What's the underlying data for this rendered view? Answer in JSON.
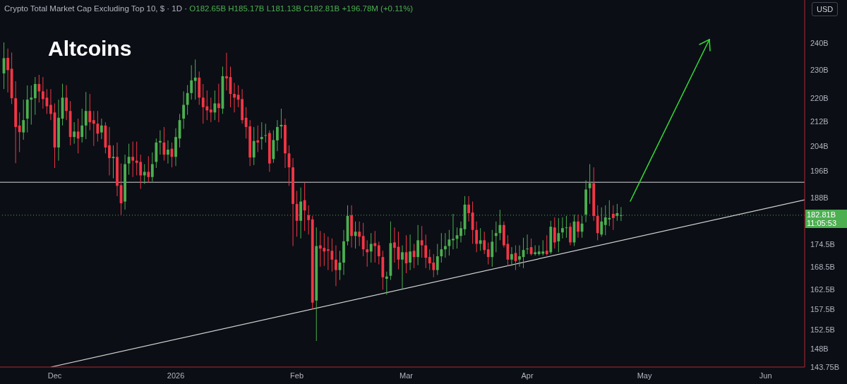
{
  "chart_data": {
    "type": "candlestick",
    "title": "Crypto Total Market Cap Excluding Top 10, $ · 1D ·",
    "subtitle": "O182.65B H185.17B L181.13B C182.81B +196.78M (+0.11%)",
    "annotations": [
      "Altcoins",
      "USD",
      "11:05:53"
    ],
    "log": "y",
    "colors": [
      "#4caf50",
      "#f23645",
      "#f23645",
      "#f23645",
      "#f23645",
      "#4caf50",
      "#4caf50",
      "#4caf50",
      "#4caf50",
      "#f23645",
      "#f23645",
      "#f23645",
      "#f23645",
      "#f23645",
      "#4caf50",
      "#4caf50",
      "#f23645",
      "#f23645",
      "#4caf50",
      "#f23645",
      "#4caf50",
      "#4caf50",
      "#f23645",
      "#f23645",
      "#f23645",
      "#4caf50",
      "#f23645",
      "#f23645",
      "#4caf50",
      "#f23645",
      "#f23645",
      "#4caf50",
      "#4caf50",
      "#f23645",
      "#f23645",
      "#f23645",
      "#4caf50",
      "#f23645",
      "#4caf50",
      "#4caf50",
      "#4caf50",
      "#f23645",
      "#4caf50",
      "#f23645",
      "#4caf50",
      "#4caf50",
      "#4caf50",
      "#4caf50",
      "#4caf50",
      "#4caf50",
      "#f23645",
      "#f23645",
      "#f23645",
      "#f23645",
      "#4caf50",
      "#f23645",
      "#4caf50",
      "#f23645",
      "#f23645",
      "#f23645",
      "#f23645",
      "#f23645",
      "#f23645",
      "#f23645",
      "#4caf50",
      "#f23645",
      "#4caf50",
      "#4caf50",
      "#f23645",
      "#4caf50",
      "#4caf50",
      "#4caf50",
      "#f23645",
      "#f23645",
      "#f23645",
      "#f23645",
      "#4caf50",
      "#f23645",
      "#f23645",
      "#f23645",
      "#4caf50",
      "#f23645",
      "#f23645",
      "#f23645",
      "#f23645",
      "#f23645",
      "#4caf50",
      "#4caf50",
      "#4caf50",
      "#f23645",
      "#4caf50",
      "#f23645",
      "#f23645",
      "#f23645",
      "#4caf50",
      "#f23645",
      "#f23645",
      "#f23645",
      "#4caf50",
      "#4caf50",
      "#f23645",
      "#f23645",
      "#4caf50",
      "#f23645",
      "#4caf50",
      "#f23645",
      "#4caf50",
      "#f23645",
      "#f23645",
      "#f23645",
      "#f23645",
      "#4caf50",
      "#4caf50",
      "#4caf50",
      "#4caf50",
      "#4caf50",
      "#4caf50",
      "#4caf50",
      "#4caf50",
      "#f23645",
      "#f23645",
      "#f23645",
      "#4caf50",
      "#f23645",
      "#f23645",
      "#4caf50",
      "#4caf50",
      "#4caf50",
      "#f23645",
      "#f23645",
      "#4caf50",
      "#f23645",
      "#4caf50",
      "#4caf50",
      "#4caf50",
      "#f23645",
      "#4caf50",
      "#4caf50",
      "#4caf50",
      "#f23645",
      "#4caf50",
      "#f23645",
      "#4caf50",
      "#4caf50",
      "#4caf50",
      "#f23645",
      "#4caf50",
      "#f23645",
      "#4caf50",
      "#4caf50",
      "#4caf50",
      "#f23645",
      "#f23645",
      "#4caf50",
      "#4caf50",
      "#4caf50",
      "#f23645",
      "#4caf50",
      "#4caf50"
    ],
    "xlim": [
      "2025-11-17",
      "2026-06-11"
    ],
    "xticks": [
      {
        "value": "2025-12-01",
        "label": "Dec"
      },
      {
        "value": "2026-01-01",
        "label": "2026"
      },
      {
        "value": "2026-02-01",
        "label": "Feb"
      },
      {
        "value": "2026-03-01",
        "label": "Mar"
      },
      {
        "value": "2026-04-01",
        "label": "Apr"
      },
      {
        "value": "2026-05-01",
        "label": "May"
      },
      {
        "value": "2026-06-01",
        "label": "Jun"
      }
    ],
    "ylim": [
      143.75,
      257
    ],
    "yticks": [
      {
        "value": 143.75,
        "label": "143.75B"
      },
      {
        "value": 148,
        "label": "148B"
      },
      {
        "value": 152.5,
        "label": "152.5B"
      },
      {
        "value": 157.5,
        "label": "157.5B"
      },
      {
        "value": 162.5,
        "label": "162.5B"
      },
      {
        "value": 168.5,
        "label": "168.5B"
      },
      {
        "value": 174.5,
        "label": "174.5B"
      },
      {
        "value": 188,
        "label": "188B"
      },
      {
        "value": 196,
        "label": "196B"
      },
      {
        "value": 204,
        "label": "204B"
      },
      {
        "value": 212,
        "label": "212B"
      },
      {
        "value": 220,
        "label": "220B"
      },
      {
        "value": 230,
        "label": "230B"
      },
      {
        "value": 240,
        "label": "240B"
      }
    ],
    "ref_lines": [
      {
        "axis": "y",
        "value": 192.6,
        "color": "#d8d8d8",
        "line_style": "solid"
      },
      {
        "axis": "y",
        "value": 182.81,
        "label": "182.81B",
        "color": "#4caf50",
        "line_style": "dotted"
      }
    ],
    "x": [
      "2025-11-18",
      "2025-11-19",
      "2025-11-20",
      "2025-11-21",
      "2025-11-22",
      "2025-11-23",
      "2025-11-24",
      "2025-11-25",
      "2025-11-26",
      "2025-11-27",
      "2025-11-28",
      "2025-11-29",
      "2025-11-30",
      "2025-12-01",
      "2025-12-02",
      "2025-12-03",
      "2025-12-04",
      "2025-12-05",
      "2025-12-06",
      "2025-12-07",
      "2025-12-08",
      "2025-12-09",
      "2025-12-10",
      "2025-12-11",
      "2025-12-12",
      "2025-12-13",
      "2025-12-14",
      "2025-12-15",
      "2025-12-16",
      "2025-12-17",
      "2025-12-18",
      "2025-12-19",
      "2025-12-20",
      "2025-12-21",
      "2025-12-22",
      "2025-12-23",
      "2025-12-24",
      "2025-12-25",
      "2025-12-26",
      "2025-12-27",
      "2025-12-28",
      "2025-12-29",
      "2025-12-30",
      "2025-12-31",
      "2026-01-01",
      "2026-01-02",
      "2026-01-03",
      "2026-01-04",
      "2026-01-05",
      "2026-01-06",
      "2026-01-07",
      "2026-01-08",
      "2026-01-09",
      "2026-01-10",
      "2026-01-11",
      "2026-01-12",
      "2026-01-13",
      "2026-01-14",
      "2026-01-15",
      "2026-01-16",
      "2026-01-17",
      "2026-01-18",
      "2026-01-19",
      "2026-01-20",
      "2026-01-21",
      "2026-01-22",
      "2026-01-23",
      "2026-01-24",
      "2026-01-25",
      "2026-01-26",
      "2026-01-27",
      "2026-01-28",
      "2026-01-29",
      "2026-01-30",
      "2026-01-31",
      "2026-02-01",
      "2026-02-02",
      "2026-02-03",
      "2026-02-04",
      "2026-02-05",
      "2026-02-06",
      "2026-02-07",
      "2026-02-08",
      "2026-02-09",
      "2026-02-10",
      "2026-02-11",
      "2026-02-12",
      "2026-02-13",
      "2026-02-14",
      "2026-02-15",
      "2026-02-16",
      "2026-02-17",
      "2026-02-18",
      "2026-02-19",
      "2026-02-20",
      "2026-02-21",
      "2026-02-22",
      "2026-02-23",
      "2026-02-24",
      "2026-02-25",
      "2026-02-26",
      "2026-02-27",
      "2026-02-28",
      "2026-03-01",
      "2026-03-02",
      "2026-03-03",
      "2026-03-04",
      "2026-03-05",
      "2026-03-06",
      "2026-03-07",
      "2026-03-08",
      "2026-03-09",
      "2026-03-10",
      "2026-03-11",
      "2026-03-12",
      "2026-03-13",
      "2026-03-14",
      "2026-03-15",
      "2026-03-16",
      "2026-03-17",
      "2026-03-18",
      "2026-03-19",
      "2026-03-20",
      "2026-03-21",
      "2026-03-22",
      "2026-03-23",
      "2026-03-24",
      "2026-03-25",
      "2026-03-26",
      "2026-03-27",
      "2026-03-28",
      "2026-03-29",
      "2026-03-30",
      "2026-03-31",
      "2026-04-01",
      "2026-04-02",
      "2026-04-03",
      "2026-04-04",
      "2026-04-05",
      "2026-04-06",
      "2026-04-07",
      "2026-04-08",
      "2026-04-09",
      "2026-04-10",
      "2026-04-11",
      "2026-04-12",
      "2026-04-13",
      "2026-04-14",
      "2026-04-15",
      "2026-04-16",
      "2026-04-17",
      "2026-04-18",
      "2026-04-19",
      "2026-04-20",
      "2026-04-21",
      "2026-04-22",
      "2026-04-23",
      "2026-04-24",
      "2026-04-25"
    ],
    "ohlc": [
      [
        228.8,
        240.3,
        223.2,
        234.4
      ],
      [
        234.5,
        238,
        222,
        230
      ],
      [
        230.5,
        236.5,
        218,
        220
      ],
      [
        220,
        226,
        198.5,
        210.2
      ],
      [
        210.7,
        215.1,
        202,
        208.5
      ],
      [
        208.4,
        219.5,
        206,
        212.5
      ],
      [
        213,
        224.5,
        208.4,
        219.5
      ],
      [
        219.5,
        224.5,
        211,
        220.2
      ],
      [
        220,
        227.5,
        214.3,
        225
      ],
      [
        225,
        228.3,
        218.5,
        222.4
      ],
      [
        222.4,
        227.5,
        216.4,
        219.7
      ],
      [
        220.2,
        223.2,
        214.6,
        217.2
      ],
      [
        217.7,
        223.2,
        212.5,
        214.6
      ],
      [
        215.1,
        218.2,
        197,
        203.5
      ],
      [
        203.5,
        219.5,
        199.3,
        213.3
      ],
      [
        213,
        225.1,
        210.7,
        220.2
      ],
      [
        220.2,
        224.6,
        212.5,
        215.6
      ],
      [
        215.6,
        219,
        204.2,
        206.9
      ],
      [
        206.9,
        211.8,
        204.7,
        208.7
      ],
      [
        208.7,
        213,
        201.6,
        206.4
      ],
      [
        206.9,
        216.4,
        205.1,
        210.7
      ],
      [
        210.7,
        222.2,
        206.2,
        215.6
      ],
      [
        215.6,
        221.5,
        209.1,
        211.8
      ],
      [
        212.5,
        215.6,
        204,
        211.3
      ],
      [
        211.3,
        215.6,
        205.4,
        208
      ],
      [
        208.4,
        213,
        206.2,
        210.7
      ],
      [
        210.7,
        211.8,
        201.6,
        203.5
      ],
      [
        204.2,
        210.2,
        194.7,
        200.1
      ],
      [
        200.1,
        204.2,
        193.8,
        200.5
      ],
      [
        200.5,
        205.1,
        188.4,
        191.5
      ],
      [
        191.7,
        198.4,
        183,
        186.3
      ],
      [
        186.8,
        201.2,
        184.4,
        198.2
      ],
      [
        198.4,
        204.7,
        194.9,
        200.5
      ],
      [
        200.5,
        205.4,
        194.2,
        199.3
      ],
      [
        199.3,
        205.4,
        194.7,
        198.6
      ],
      [
        198.9,
        201.2,
        190.6,
        194.7
      ],
      [
        194.7,
        198.2,
        192.1,
        195.8
      ],
      [
        195.8,
        200.7,
        192.5,
        194.2
      ],
      [
        194.2,
        201.9,
        192.8,
        198.2
      ],
      [
        198.9,
        206.4,
        197,
        205.1
      ],
      [
        205.1,
        209.1,
        201.2,
        205.6
      ],
      [
        205.1,
        210.2,
        199.3,
        201.2
      ],
      [
        201.2,
        205.8,
        198.4,
        202.8
      ],
      [
        203.1,
        205.1,
        197.2,
        200.5
      ],
      [
        200.5,
        209.8,
        197.6,
        206.9
      ],
      [
        206.4,
        214.6,
        203.5,
        212.5
      ],
      [
        213,
        222.4,
        209.6,
        217.7
      ],
      [
        217.7,
        224.6,
        214.3,
        221.8
      ],
      [
        221.8,
        231.8,
        219.5,
        226.3
      ],
      [
        226.1,
        233.9,
        219.5,
        227.3
      ],
      [
        227.3,
        229.5,
        217.7,
        220.2
      ],
      [
        220.2,
        225,
        211.3,
        216.9
      ],
      [
        217.2,
        222.7,
        212.5,
        215.8
      ],
      [
        216.1,
        220.2,
        211.8,
        215.1
      ],
      [
        215.1,
        222.7,
        212.5,
        218.2
      ],
      [
        218.2,
        225.1,
        211.8,
        216.6
      ],
      [
        216.4,
        231.3,
        214.6,
        227.8
      ],
      [
        227.8,
        236.4,
        222.7,
        227
      ],
      [
        227.5,
        231.3,
        216.9,
        221.5
      ],
      [
        221.5,
        225.4,
        215.1,
        220.2
      ],
      [
        221.2,
        224.6,
        216.9,
        219.5
      ],
      [
        219.7,
        223.2,
        211.3,
        212.5
      ],
      [
        213.3,
        216.9,
        206.4,
        210.2
      ],
      [
        210.4,
        212.5,
        197.6,
        200.3
      ],
      [
        200.3,
        210.2,
        197.9,
        205.6
      ],
      [
        205.8,
        210.7,
        202,
        205.1
      ],
      [
        206.2,
        211.8,
        202.8,
        206.9
      ],
      [
        207.3,
        211.3,
        205.1,
        207.5
      ],
      [
        208.2,
        209.1,
        195.8,
        198.4
      ],
      [
        199.8,
        209.1,
        198.6,
        205.9
      ],
      [
        205.8,
        212.5,
        202.3,
        210.2
      ],
      [
        210.4,
        216.4,
        206.4,
        210.9
      ],
      [
        210.9,
        213,
        197,
        201.6
      ],
      [
        201.6,
        204.2,
        191.5,
        197.2
      ],
      [
        197.2,
        200.1,
        174.1,
        186.1
      ],
      [
        186.1,
        190,
        176.7,
        181.2
      ],
      [
        181.2,
        191,
        176.2,
        186.8
      ],
      [
        187.2,
        192.5,
        178.3,
        184.2
      ],
      [
        182.8,
        185.7,
        177.3,
        181.4
      ],
      [
        181.6,
        182.6,
        157.5,
        159.2
      ],
      [
        159.7,
        179.3,
        149.8,
        174.1
      ],
      [
        174.3,
        178.3,
        168.5,
        173.4
      ],
      [
        173.6,
        177.7,
        168.7,
        172.6
      ],
      [
        173.2,
        176.7,
        167.6,
        172.8
      ],
      [
        172.8,
        176.2,
        167.2,
        170.4
      ],
      [
        170.4,
        174.3,
        163.4,
        167.6
      ],
      [
        167.6,
        172.8,
        165,
        169.6
      ],
      [
        169.6,
        178.6,
        166.3,
        175.4
      ],
      [
        175.4,
        185.7,
        174.3,
        182.6
      ],
      [
        182.8,
        185.7,
        173.7,
        176.9
      ],
      [
        176.9,
        181,
        173.4,
        178.1
      ],
      [
        178.1,
        181,
        174.1,
        176.7
      ],
      [
        176.9,
        180.6,
        171.3,
        173.2
      ],
      [
        173.2,
        175.7,
        168.5,
        172.4
      ],
      [
        172.6,
        177.7,
        169.6,
        174.7
      ],
      [
        174.9,
        178.3,
        169.6,
        174.1
      ],
      [
        174.3,
        175.3,
        169.1,
        171.3
      ],
      [
        171.1,
        172.8,
        162.5,
        165.7
      ],
      [
        165.3,
        167.2,
        161.2,
        165.9
      ],
      [
        166.1,
        181,
        165,
        174.9
      ],
      [
        175.1,
        179.3,
        169.6,
        173.6
      ],
      [
        173.9,
        178.1,
        167.8,
        170.4
      ],
      [
        170.4,
        174.3,
        162.5,
        172.4
      ],
      [
        172.4,
        177.1,
        166.8,
        169.4
      ],
      [
        169.6,
        177.3,
        167.6,
        172.6
      ],
      [
        172.8,
        174.7,
        168.1,
        171.1
      ],
      [
        171.1,
        180,
        168.9,
        175.7
      ],
      [
        175.7,
        179.7,
        170.9,
        174.3
      ],
      [
        174.3,
        177.3,
        168.1,
        170.9
      ],
      [
        171.1,
        173.2,
        167.6,
        169.4
      ],
      [
        169.6,
        171.9,
        165.7,
        167.6
      ],
      [
        167.6,
        174.7,
        166.3,
        171.3
      ],
      [
        171.3,
        177.7,
        169.6,
        173.2
      ],
      [
        173.2,
        177.7,
        170.9,
        174.1
      ],
      [
        174.1,
        178.6,
        171.5,
        175.9
      ],
      [
        175.7,
        183.2,
        173.2,
        176.1
      ],
      [
        176.1,
        179.3,
        173.4,
        177.1
      ],
      [
        176.9,
        181,
        175.1,
        179.1
      ],
      [
        178.8,
        188.4,
        177.1,
        185.9
      ],
      [
        185.9,
        188.4,
        181,
        183.4
      ],
      [
        183.6,
        186.8,
        174.7,
        178.6
      ],
      [
        178.6,
        181,
        172.4,
        174.7
      ],
      [
        174.7,
        179.1,
        172.8,
        175.7
      ],
      [
        175.7,
        178.1,
        171.9,
        173
      ],
      [
        173.2,
        175.1,
        169.1,
        171.1
      ],
      [
        171.1,
        178.6,
        168.5,
        175.3
      ],
      [
        176.9,
        181,
        172.4,
        177.7
      ],
      [
        177.7,
        184.4,
        175.7,
        180
      ],
      [
        180,
        181,
        173.7,
        174.3
      ],
      [
        174.7,
        177.1,
        168.7,
        170.4
      ],
      [
        170.4,
        173.8,
        168.7,
        171.9
      ],
      [
        172.2,
        174.3,
        167.6,
        170
      ],
      [
        170.4,
        174.3,
        168.5,
        171.3
      ],
      [
        171.1,
        176.4,
        168.1,
        173
      ],
      [
        173.2,
        177.3,
        171.9,
        173.4
      ],
      [
        173.8,
        176.2,
        171.5,
        171.9
      ],
      [
        171.9,
        174.3,
        171.5,
        172.4
      ],
      [
        171.9,
        174.3,
        171.5,
        172.6
      ],
      [
        172,
        175.7,
        171.5,
        172.6
      ],
      [
        172.8,
        177.1,
        171.5,
        171.9
      ],
      [
        172.4,
        181.2,
        171.9,
        179.5
      ],
      [
        179.3,
        182.2,
        173.4,
        175.1
      ],
      [
        175.4,
        182,
        172.4,
        177.7
      ],
      [
        177.9,
        182.2,
        176.2,
        179.1
      ],
      [
        179.1,
        182.6,
        176.4,
        179.3
      ],
      [
        179.5,
        180.6,
        174.3,
        175.1
      ],
      [
        175.1,
        183,
        174.1,
        181
      ],
      [
        181,
        183,
        176.4,
        178.1
      ],
      [
        178.1,
        182.6,
        176.4,
        180.4
      ],
      [
        183,
        193.2,
        180.8,
        190.4
      ],
      [
        190.8,
        198.2,
        186.1,
        192.3
      ],
      [
        192.3,
        197.2,
        181.2,
        182.6
      ],
      [
        182.6,
        185.7,
        175.7,
        177.7
      ],
      [
        177.3,
        185.1,
        176.7,
        181
      ],
      [
        180,
        185.7,
        177.1,
        182.2
      ],
      [
        181.6,
        187.2,
        179.7,
        182
      ],
      [
        183.2,
        185.7,
        178.6,
        182
      ],
      [
        182.6,
        186.1,
        181.2,
        183.4
      ],
      [
        182.65,
        185.17,
        181.13,
        182.81
      ]
    ],
    "series": [
      {
        "type": "line",
        "color": "#d0d0d0",
        "x": [
          "2025-11-30",
          "2026-06-11"
        ],
        "values": [
          143.75,
          187.3
        ]
      }
    ]
  }
}
